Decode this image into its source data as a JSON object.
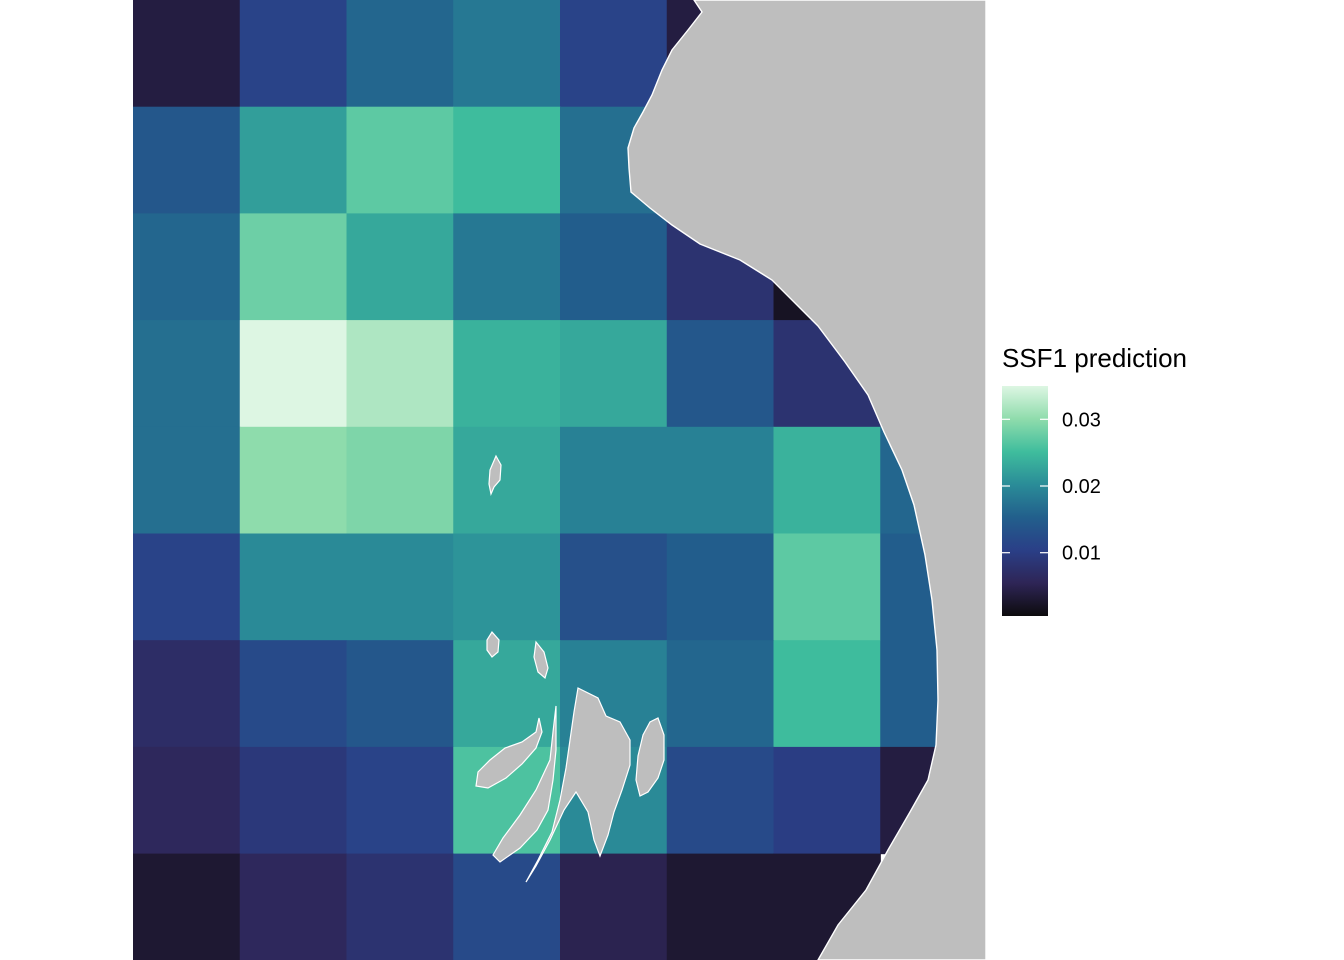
{
  "legend": {
    "title": "SSF1 prediction",
    "range": [
      0.0005,
      0.035
    ],
    "ticks": [
      {
        "value": 0.01,
        "label": "0.01"
      },
      {
        "value": 0.02,
        "label": "0.02"
      },
      {
        "value": 0.03,
        "label": "0.03"
      }
    ]
  },
  "colors": {
    "land": "#bebebe",
    "coastline": "#ffffff",
    "palette": [
      "#0d0b0d",
      "#2e2556",
      "#2a3f87",
      "#225f8c",
      "#2a8c98",
      "#3fbd9d",
      "#8fdcac",
      "#ddf6e3"
    ]
  },
  "chart_data": {
    "type": "heatmap",
    "title": "",
    "xlabel": "",
    "ylabel": "",
    "rows": 9,
    "cols": 8,
    "values": [
      [
        0.004,
        0.011,
        0.016,
        0.018,
        0.011,
        0.004,
        null,
        null
      ],
      [
        0.014,
        0.022,
        0.027,
        0.025,
        0.017,
        null,
        null,
        null
      ],
      [
        0.016,
        0.028,
        0.023,
        0.018,
        0.015,
        0.008,
        0.002,
        null
      ],
      [
        0.017,
        0.035,
        0.032,
        0.024,
        0.023,
        0.014,
        0.008,
        null
      ],
      [
        0.017,
        0.03,
        0.029,
        0.023,
        0.019,
        0.019,
        0.024,
        0.016
      ],
      [
        0.011,
        0.02,
        0.02,
        0.021,
        0.013,
        0.015,
        0.027,
        0.015
      ],
      [
        0.007,
        0.012,
        0.014,
        0.023,
        0.019,
        0.016,
        0.025,
        0.015
      ],
      [
        0.006,
        0.009,
        0.011,
        0.026,
        0.02,
        0.012,
        0.01,
        0.004
      ],
      [
        0.003,
        0.006,
        0.008,
        0.012,
        0.005,
        0.003,
        0.003,
        null
      ]
    ]
  }
}
